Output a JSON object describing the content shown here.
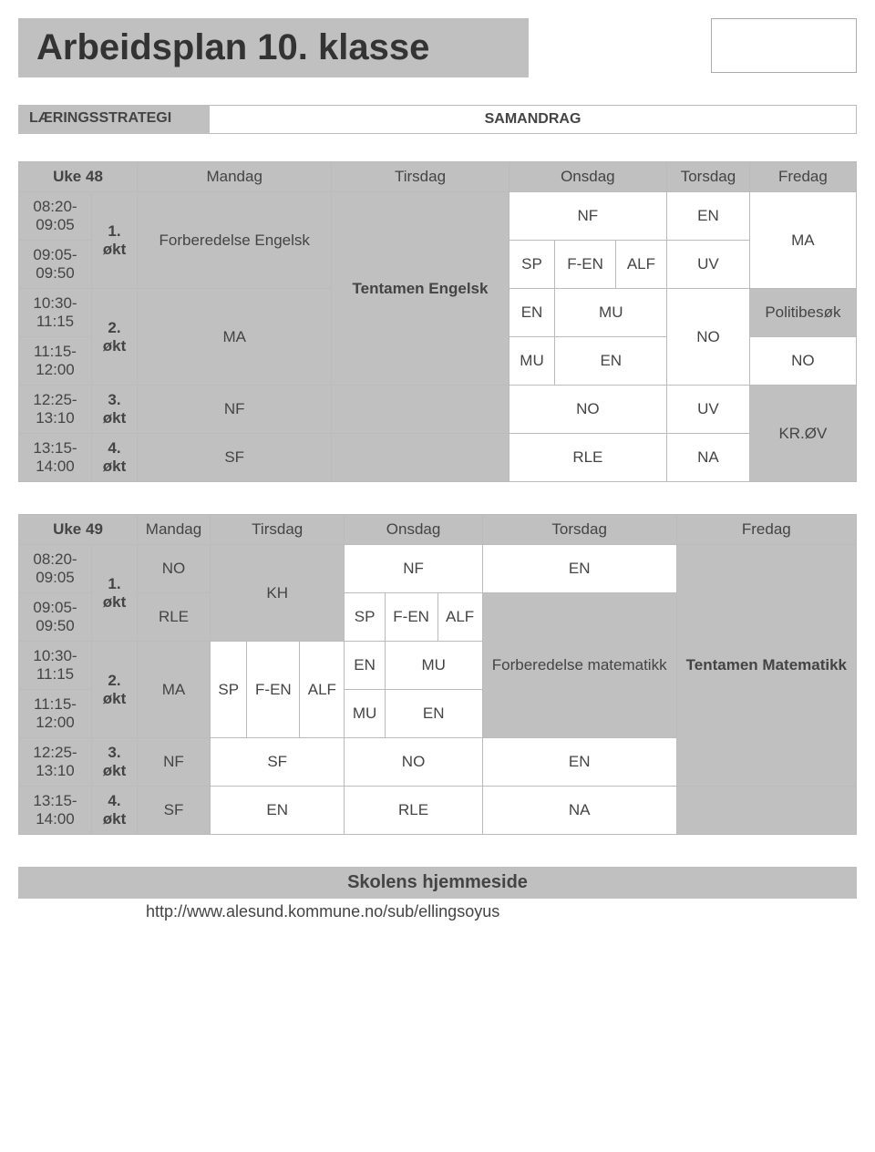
{
  "title": "Arbeidsplan 10. klasse",
  "strategy_label": "LÆRINGSSTRATEGI",
  "strategy_value": "SAMANDRAG",
  "days": {
    "mon": "Mandag",
    "tue": "Tirsdag",
    "wed": "Onsdag",
    "thu": "Torsdag",
    "fri": "Fredag"
  },
  "weeks": {
    "w48": "Uke 48",
    "w49": "Uke 49"
  },
  "times": {
    "t1": "08:20-09:05",
    "t2": "09:05-09:50",
    "t3": "10:30-11:15",
    "t4": "11:15-12:00",
    "t5": "12:25-13:10",
    "t6": "13:15-14:00"
  },
  "sessions": {
    "s1": "1. økt",
    "s2": "2. økt",
    "s3": "3. økt",
    "s4": "4. økt"
  },
  "subj": {
    "forberedelse_en": "Forberedelse Engelsk",
    "tentamen_en": "Tentamen Engelsk",
    "forberedelse_ma": "Forberedelse matematikk",
    "tentamen_ma": "Tentamen Matematikk",
    "MA": "MA",
    "NF": "NF",
    "EN": "EN",
    "SP": "SP",
    "FEN": "F-EN",
    "ALF": "ALF",
    "UV": "UV",
    "MU": "MU",
    "NO": "NO",
    "SF": "SF",
    "RLE": "RLE",
    "NA": "NA",
    "KROV": "KR.ØV",
    "KH": "KH",
    "politi": "Politibesøk"
  },
  "footer": {
    "title": "Skolens hjemmeside",
    "url": "http://www.alesund.kommune.no/sub/ellingsoyus"
  }
}
